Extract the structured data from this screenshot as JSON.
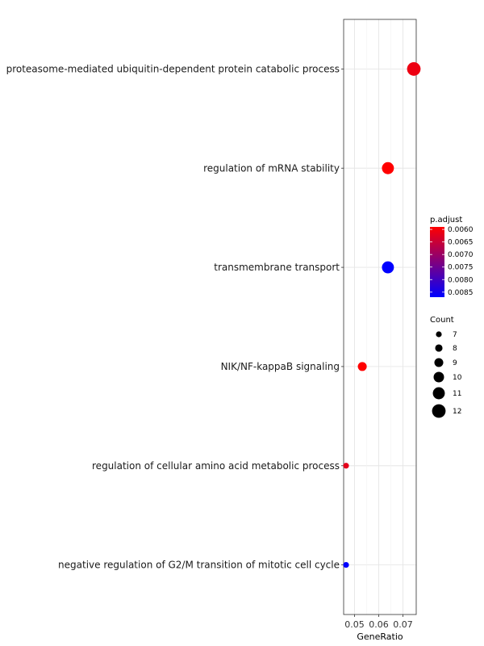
{
  "chart_data": {
    "type": "scatter",
    "xlabel": "GeneRatio",
    "ylabel": "",
    "title": "",
    "x_ticks": [
      "0.05",
      "0.06",
      "0.07"
    ],
    "x_tick_values": [
      0.05,
      0.06,
      0.07
    ],
    "xlim": [
      0.0455,
      0.0755
    ],
    "grid": true,
    "legend_placement": "right",
    "categories": [
      "proteasome-mediated ubiquitin-dependent protein catabolic process",
      "regulation of mRNA stability",
      "transmembrane transport",
      "NIK/NF-kappaB signaling",
      "regulation of cellular amino acid metabolic process",
      "negative regulation of G2/M transition of mitotic cell cycle"
    ],
    "points": [
      {
        "term": "proteasome-mediated ubiquitin-dependent protein catabolic process",
        "gene_ratio": 0.0745,
        "count": 12,
        "p_adjust": 0.0061
      },
      {
        "term": "regulation of mRNA stability",
        "gene_ratio": 0.0638,
        "count": 11,
        "p_adjust": 0.0059
      },
      {
        "term": "transmembrane transport",
        "gene_ratio": 0.0638,
        "count": 11,
        "p_adjust": 0.0087
      },
      {
        "term": "NIK/NF-kappaB signaling",
        "gene_ratio": 0.0532,
        "count": 9,
        "p_adjust": 0.0059
      },
      {
        "term": "regulation of cellular amino acid metabolic process",
        "gene_ratio": 0.0465,
        "count": 7,
        "p_adjust": 0.0062
      },
      {
        "term": "negative regulation of G2/M transition of mitotic cell cycle",
        "gene_ratio": 0.0465,
        "count": 7,
        "p_adjust": 0.0087
      }
    ],
    "color_legend": {
      "title": "p.adjust",
      "ticks": [
        "0.0060",
        "0.0065",
        "0.0070",
        "0.0075",
        "0.0080",
        "0.0085"
      ],
      "tick_values": [
        0.006,
        0.0065,
        0.007,
        0.0075,
        0.008,
        0.0085
      ],
      "range": [
        0.0059,
        0.0087
      ],
      "low_color": "#FF0000",
      "high_color": "#0000FF"
    },
    "size_legend": {
      "title": "Count",
      "values": [
        7,
        8,
        9,
        10,
        11,
        12
      ],
      "labels": [
        "7",
        "8",
        "9",
        "10",
        "11",
        "12"
      ]
    }
  }
}
